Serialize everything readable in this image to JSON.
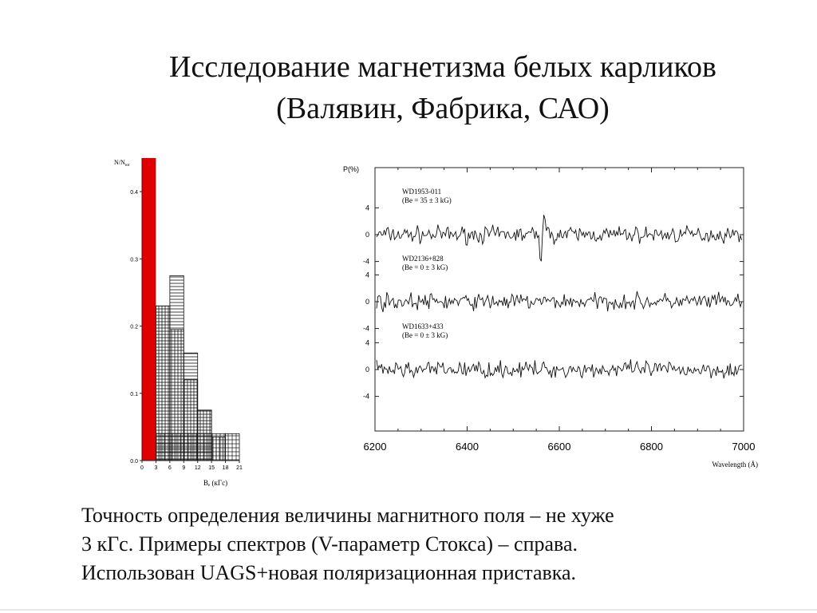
{
  "slide": {
    "title_line1": "Исследование магнетизма белых карликов",
    "title_line2": "(Валявин, Фабрика, САО)",
    "body_line1": "Точность определения величины магнитного поля – не хуже",
    "body_line2": "3 кГс. Примеры спектров (V-параметр Стокса) – справа.",
    "body_line3": "Использован UAGS+новая поляризационная приставка."
  },
  "chart_data": [
    {
      "type": "bar",
      "ylabel_main": "N/N",
      "ylabel_sub": "tot",
      "xlabel": "Bₑ (кГс)",
      "ylim": [
        0,
        0.45
      ],
      "y_ticks": [
        "0.0",
        "0.1",
        "0.2",
        "0.3",
        "0.4"
      ],
      "x_ticks": [
        "0",
        "3",
        "6",
        "9",
        "12",
        "15",
        "18",
        "21"
      ],
      "bin_edges": [
        0,
        3,
        6,
        9,
        12,
        15,
        18,
        21
      ],
      "colors": {
        "highlight": "#e00000",
        "axis": "#222222"
      },
      "series": [
        {
          "kind": "solid",
          "values": [
            0.45
          ]
        },
        {
          "kind": "vertical-hatch",
          "values": [
            0.075,
            0.23,
            0.195,
            0.12,
            0.075,
            0.035,
            0.0
          ]
        },
        {
          "kind": "horizontal-hatch",
          "values": [
            0.0,
            0.23,
            0.275,
            0.16,
            0.075,
            0.0,
            0.0
          ]
        },
        {
          "kind": "grid-hatch",
          "values": [
            0.0,
            0.04,
            0.04,
            0.04,
            0.04,
            0.04,
            0.04
          ]
        }
      ]
    },
    {
      "type": "line",
      "ylabel": "P(%)",
      "xlabel": "Wavelength (Å)",
      "xlim": [
        6200,
        7000
      ],
      "x_ticks": [
        "6200",
        "6400",
        "6600",
        "6800",
        "7000"
      ],
      "y_ticks": [
        "4",
        "0",
        "-4"
      ],
      "noise_amplitude": 1.2,
      "series": [
        {
          "name": "WD1953-011",
          "annotation": "(Be = 35 ± 3 kG)",
          "feature_center": 6563,
          "feature_amplitude": 5.5
        },
        {
          "name": "WD2136+828",
          "annotation": "(Be =  0 ± 3 kG)"
        },
        {
          "name": "WD1633+433",
          "annotation": "(Be =  0 ± 3 kG)"
        }
      ]
    }
  ]
}
